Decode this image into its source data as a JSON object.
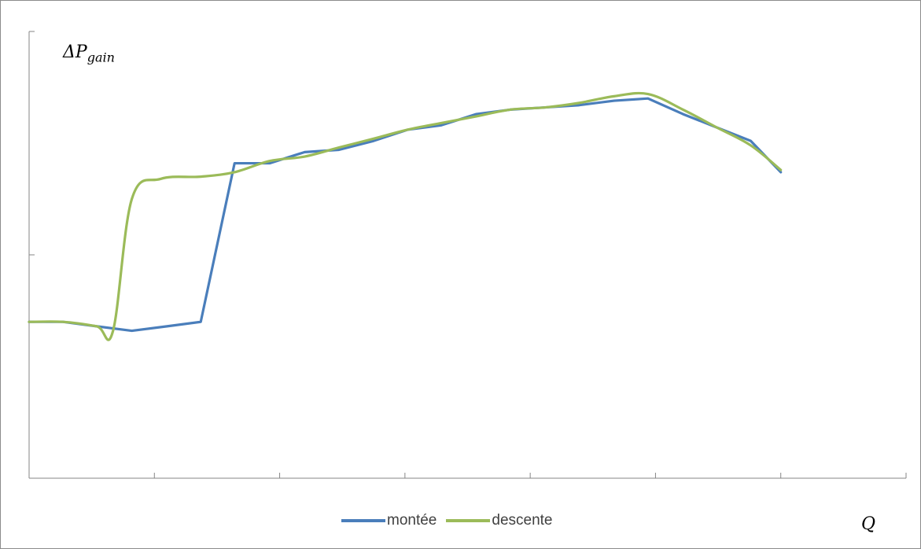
{
  "chart_data": {
    "type": "line",
    "title": "",
    "ylabel": "ΔP",
    "ylabel_sub": "gain",
    "xlabel": "Q",
    "legend_position": "bottom",
    "grid": false,
    "xlim": [
      0,
      7
    ],
    "ylim": [
      0,
      2
    ],
    "x_ticks": [
      1,
      2,
      3,
      4,
      5,
      6,
      7
    ],
    "y_ticks": [
      1,
      2
    ],
    "series": [
      {
        "name": "montée",
        "color": "#4a7ebb",
        "smooth": false,
        "x": [
          0,
          0.27,
          0.54,
          0.82,
          1.1,
          1.37,
          1.64,
          1.92,
          2.2,
          2.47,
          2.75,
          3.02,
          3.29,
          3.57,
          3.84,
          4.12,
          4.39,
          4.67,
          4.94,
          5.22,
          5.49,
          5.76,
          6.0
        ],
        "y": [
          0.7,
          0.7,
          0.68,
          0.66,
          0.68,
          0.7,
          1.41,
          1.41,
          1.46,
          1.47,
          1.51,
          1.56,
          1.58,
          1.63,
          1.65,
          1.66,
          1.67,
          1.69,
          1.7,
          1.63,
          1.57,
          1.51,
          1.37
        ]
      },
      {
        "name": "descente",
        "color": "#9bbb59",
        "smooth": true,
        "x": [
          0,
          0.27,
          0.54,
          0.67,
          0.82,
          1.05,
          1.37,
          1.64,
          1.92,
          2.2,
          2.47,
          2.75,
          3.02,
          3.29,
          3.57,
          3.84,
          4.12,
          4.39,
          4.67,
          4.94,
          5.22,
          5.49,
          5.76,
          6.0
        ],
        "y": [
          0.7,
          0.7,
          0.68,
          0.66,
          1.25,
          1.34,
          1.35,
          1.37,
          1.42,
          1.44,
          1.48,
          1.52,
          1.56,
          1.59,
          1.62,
          1.65,
          1.66,
          1.68,
          1.71,
          1.72,
          1.65,
          1.57,
          1.49,
          1.38
        ]
      }
    ]
  }
}
